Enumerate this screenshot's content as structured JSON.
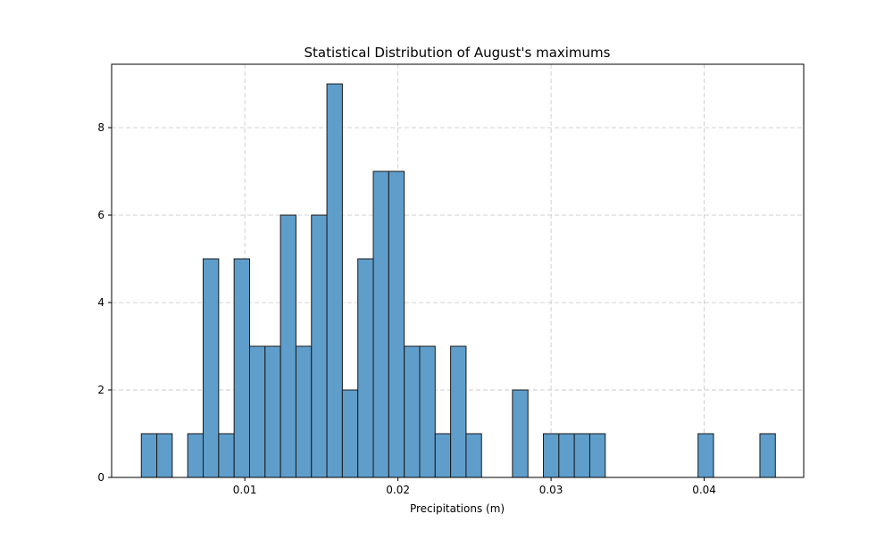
{
  "chart_data": {
    "type": "bar",
    "title": "Statistical Distribution of August's maximums",
    "xlabel": "Precipitations (m)",
    "ylabel": "",
    "xlim": [
      0.0013,
      0.0465
    ],
    "ylim": [
      0,
      9.45
    ],
    "grid": true,
    "bin_width": 0.00101,
    "bins": [
      {
        "x_left": 0.00324,
        "count": 1
      },
      {
        "x_left": 0.00425,
        "count": 1
      },
      {
        "x_left": 0.00627,
        "count": 1
      },
      {
        "x_left": 0.00728,
        "count": 5
      },
      {
        "x_left": 0.00829,
        "count": 1
      },
      {
        "x_left": 0.0093,
        "count": 5
      },
      {
        "x_left": 0.01031,
        "count": 3
      },
      {
        "x_left": 0.01132,
        "count": 3
      },
      {
        "x_left": 0.01233,
        "count": 6
      },
      {
        "x_left": 0.01334,
        "count": 3
      },
      {
        "x_left": 0.01435,
        "count": 6
      },
      {
        "x_left": 0.01536,
        "count": 9
      },
      {
        "x_left": 0.01637,
        "count": 2
      },
      {
        "x_left": 0.01738,
        "count": 5
      },
      {
        "x_left": 0.01839,
        "count": 7
      },
      {
        "x_left": 0.0194,
        "count": 7
      },
      {
        "x_left": 0.02041,
        "count": 3
      },
      {
        "x_left": 0.02142,
        "count": 3
      },
      {
        "x_left": 0.02243,
        "count": 1
      },
      {
        "x_left": 0.02344,
        "count": 3
      },
      {
        "x_left": 0.02445,
        "count": 1
      },
      {
        "x_left": 0.02748,
        "count": 2
      },
      {
        "x_left": 0.0295,
        "count": 1
      },
      {
        "x_left": 0.03051,
        "count": 1
      },
      {
        "x_left": 0.03152,
        "count": 1
      },
      {
        "x_left": 0.03253,
        "count": 1
      },
      {
        "x_left": 0.0396,
        "count": 1
      },
      {
        "x_left": 0.04364,
        "count": 1
      }
    ],
    "xticks": [
      {
        "value": 0.01,
        "label": "0.01"
      },
      {
        "value": 0.02,
        "label": "0.02"
      },
      {
        "value": 0.03,
        "label": "0.03"
      },
      {
        "value": 0.04,
        "label": "0.04"
      }
    ],
    "yticks": [
      {
        "value": 0,
        "label": "0"
      },
      {
        "value": 2,
        "label": "2"
      },
      {
        "value": 4,
        "label": "4"
      },
      {
        "value": 6,
        "label": "6"
      },
      {
        "value": 8,
        "label": "8"
      }
    ],
    "colors": {
      "bar_fill": "#5f9ecb",
      "bar_edge": "#1a1a1a",
      "grid": "#cccccc",
      "axes": "#000000"
    }
  }
}
